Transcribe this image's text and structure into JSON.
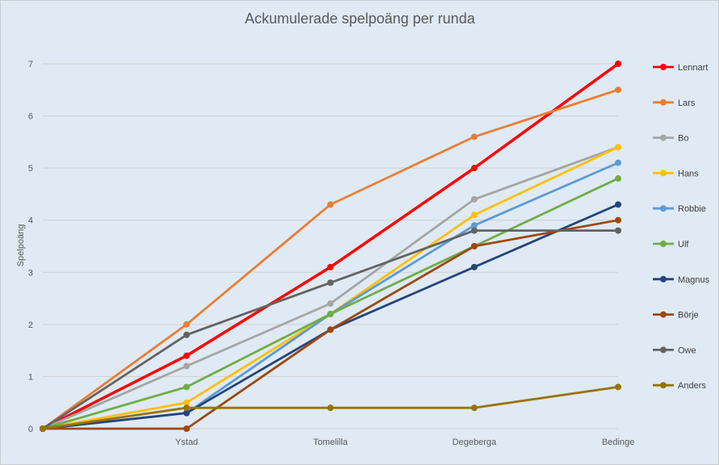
{
  "chart_data": {
    "type": "line",
    "title": "Ackumulerade spelpoäng per runda",
    "xlabel": "",
    "ylabel": "Spelpoäng",
    "categories": [
      "",
      "Ystad",
      "Tomelilla",
      "Degeberga",
      "Bedinge"
    ],
    "ylim": [
      0,
      7
    ],
    "yticks": [
      "0",
      "1",
      "2",
      "3",
      "4",
      "5",
      "6",
      "7"
    ],
    "grid": true,
    "legend": "right",
    "series": [
      {
        "name": "Lennart",
        "color": "#ff0000",
        "values": [
          0,
          1.4,
          3.1,
          5.0,
          7.0
        ]
      },
      {
        "name": "Lars",
        "color": "#ed7d31",
        "values": [
          0,
          2.0,
          4.3,
          5.6,
          6.5
        ]
      },
      {
        "name": "Bo",
        "color": "#a5a5a5",
        "values": [
          0,
          1.2,
          2.4,
          4.4,
          5.4
        ]
      },
      {
        "name": "Hans",
        "color": "#ffc000",
        "values": [
          0,
          0.5,
          2.2,
          4.1,
          5.4
        ]
      },
      {
        "name": "Robbie",
        "color": "#5b9bd5",
        "values": [
          0,
          0.3,
          2.2,
          3.9,
          5.1
        ]
      },
      {
        "name": "Ulf",
        "color": "#70ad47",
        "values": [
          0,
          0.8,
          2.2,
          3.5,
          4.8
        ]
      },
      {
        "name": "Magnus",
        "color": "#264478",
        "values": [
          0,
          0.3,
          1.9,
          3.1,
          4.3
        ]
      },
      {
        "name": "Börje",
        "color": "#9e480e",
        "values": [
          0,
          0,
          1.9,
          3.5,
          4.0
        ]
      },
      {
        "name": "Owe",
        "color": "#636363",
        "values": [
          0,
          1.8,
          2.8,
          3.8,
          3.8
        ]
      },
      {
        "name": "Anders",
        "color": "#997300",
        "values": [
          0,
          0.4,
          0.4,
          0.4,
          0.8
        ]
      }
    ]
  }
}
